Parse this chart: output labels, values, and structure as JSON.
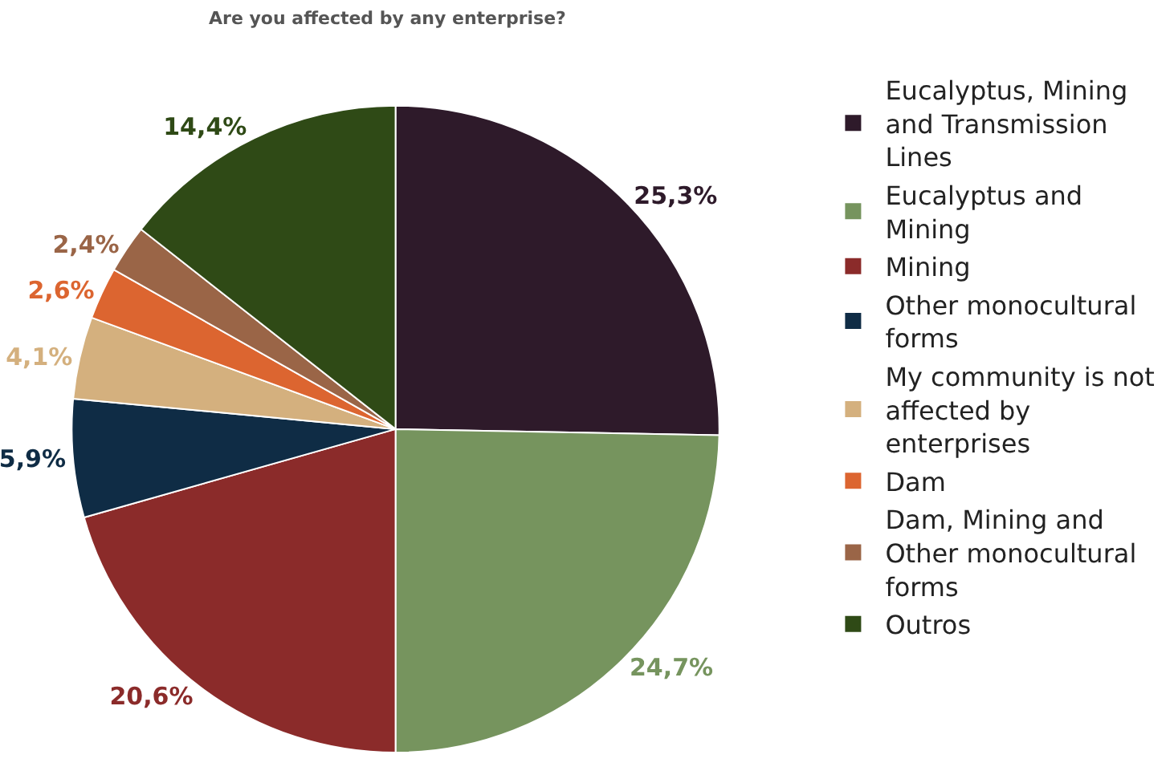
{
  "chart_data": {
    "type": "pie",
    "title": "Are you affected by any enterprise?",
    "categories": [
      "Eucalyptus, Mining and Transmission Lines",
      "Eucalyptus and Mining",
      "Mining",
      "Other monocultural forms",
      "My community is not affected by enterprises",
      "Dam",
      "Dam, Mining and Other monocultural forms",
      "Outros"
    ],
    "values": [
      25.3,
      24.7,
      20.6,
      5.9,
      4.1,
      2.6,
      2.4,
      14.4
    ],
    "value_labels": [
      "25,3%",
      "24,7%",
      "20,6%",
      "5,9%",
      "4,1%",
      "2,6%",
      "2,4%",
      "14,4%"
    ],
    "colors": [
      "#2e1a2a",
      "#76945e",
      "#8b2b2a",
      "#0f2c45",
      "#d4b07e",
      "#dc6530",
      "#9a6547",
      "#2f4a16"
    ],
    "legend": "right"
  }
}
